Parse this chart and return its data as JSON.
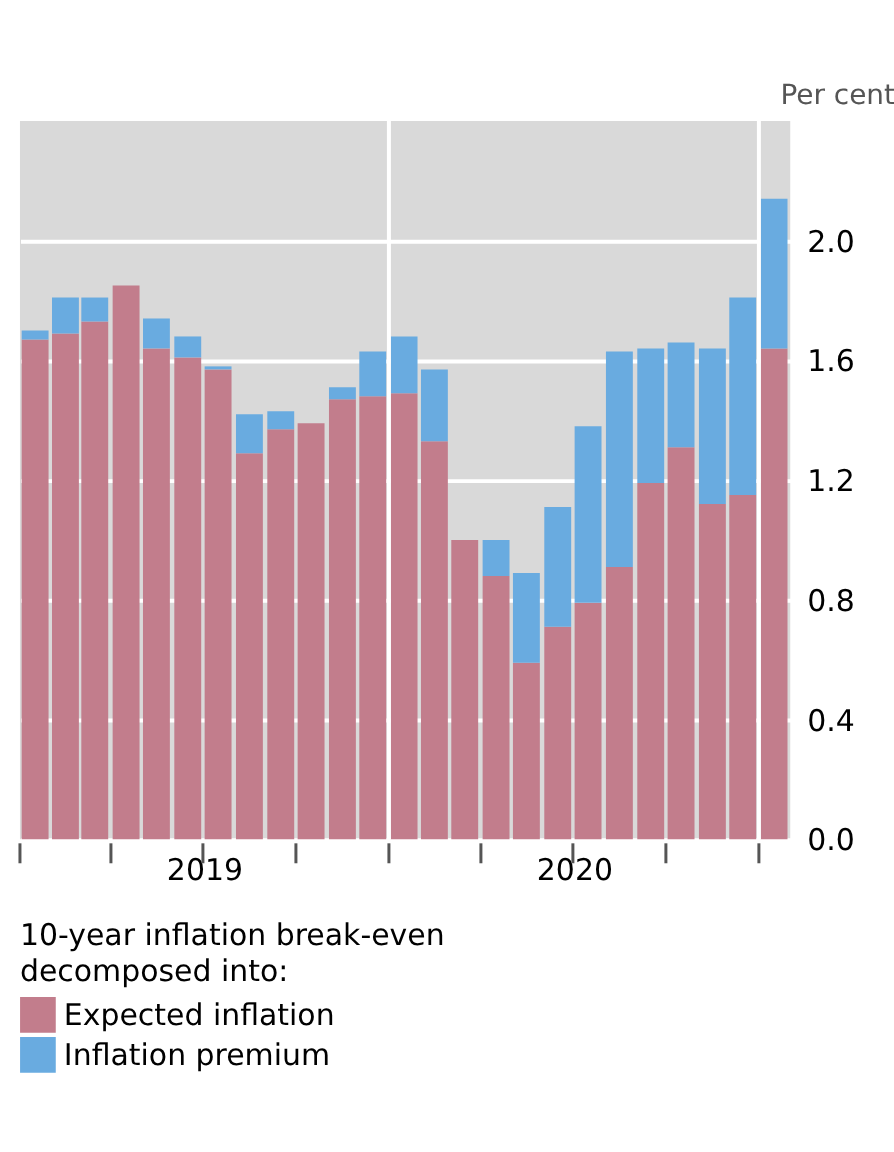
{
  "chart_data": {
    "type": "bar",
    "stacked": true,
    "x": [
      "2019-01-16",
      "2019-02-15",
      "2019-03-16",
      "2019-04-16",
      "2019-05-16",
      "2019-06-16",
      "2019-07-16",
      "2019-08-16",
      "2019-09-16",
      "2019-10-16",
      "2019-11-16",
      "2019-12-16",
      "2020-01-16",
      "2020-02-15",
      "2020-03-16",
      "2020-04-16",
      "2020-05-16",
      "2020-06-16",
      "2020-07-16",
      "2020-08-16",
      "2020-09-16",
      "2020-10-16",
      "2020-11-16",
      "2020-12-16",
      "2021-01-16"
    ],
    "series": [
      {
        "name": "Expected inflation",
        "color": "#c27d8c",
        "values": [
          1.67,
          1.69,
          1.73,
          1.85,
          1.64,
          1.61,
          1.57,
          1.29,
          1.37,
          1.39,
          1.47,
          1.48,
          1.49,
          1.33,
          1.0,
          0.88,
          0.59,
          0.71,
          0.79,
          0.91,
          1.19,
          1.31,
          1.12,
          1.15,
          1.64
        ]
      },
      {
        "name": "Inflation premium",
        "color": "#69abe0",
        "values": [
          0.03,
          0.12,
          0.08,
          0,
          0.1,
          0.07,
          0.01,
          0.13,
          0.06,
          0,
          0.04,
          0.15,
          0.19,
          0.24,
          0,
          0.12,
          0.3,
          0.4,
          0.59,
          0.72,
          0.45,
          0.35,
          0.52,
          0.66,
          0.5
        ]
      }
    ],
    "ylabel": "Per cent",
    "legend_title": "10-year inflation break-even decomposed into:",
    "ylim": [
      0,
      2.4
    ],
    "yticks": [
      {
        "value": 0,
        "label": "0.0"
      },
      0.4,
      0.8,
      1.2,
      1.6,
      {
        "value": 2,
        "label": "2.0"
      }
    ],
    "xlim": [
      "2019-01",
      "2021-02"
    ],
    "xticks": [
      {
        "value": "2019-01",
        "label": null
      },
      {
        "value": "2019-04",
        "label": null
      },
      {
        "value": "2019-07",
        "label": null
      },
      {
        "value": "2019-10",
        "label": null
      },
      {
        "value": "2020-01",
        "label": null
      },
      {
        "value": "2020-04",
        "label": null
      },
      {
        "value": "2020-07",
        "label": null
      },
      {
        "value": "2020-10",
        "label": null
      },
      {
        "value": "2021-01",
        "label": null
      },
      {
        "value": "2019-07-02",
        "label": "2019"
      },
      {
        "value": "2020-07-02",
        "label": "2020"
      }
    ],
    "ref_lines": [
      {
        "axis": "x",
        "value": "2020-01",
        "label": null,
        "color": "#ffffff"
      },
      {
        "axis": "x",
        "value": "2021-01",
        "label": null,
        "color": "#ffffff"
      }
    ],
    "grid": "y",
    "legend": "bottom"
  }
}
